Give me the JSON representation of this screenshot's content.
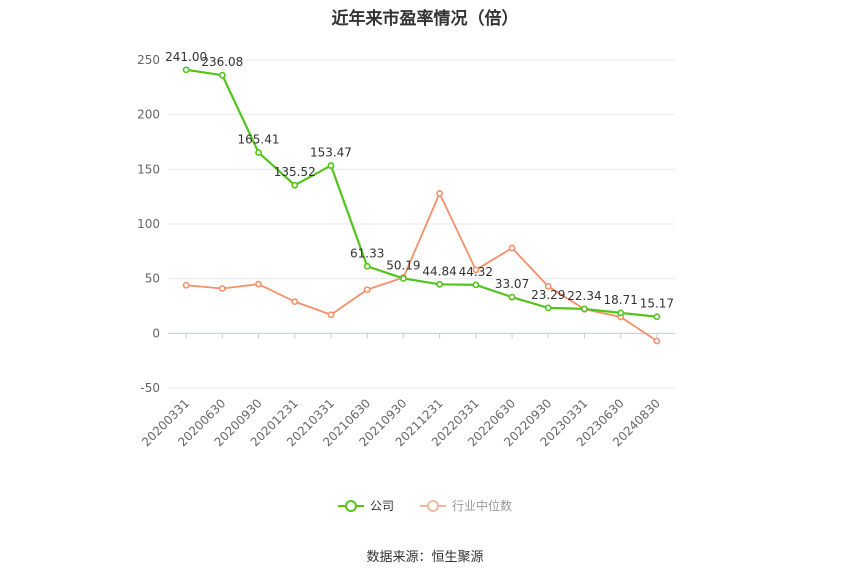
{
  "chart_data": {
    "type": "line",
    "title": "近年来市盈率情况（倍）",
    "categories": [
      "20200331",
      "20200630",
      "20200930",
      "20201231",
      "20210331",
      "20210630",
      "20210930",
      "20211231",
      "20220331",
      "20220630",
      "20220930",
      "20230331",
      "20230630",
      "20240830"
    ],
    "series": [
      {
        "name": "公司",
        "color": "#52c41a",
        "values": [
          241.0,
          236.08,
          165.41,
          135.52,
          153.47,
          61.33,
          50.19,
          44.84,
          44.32,
          33.07,
          23.29,
          22.34,
          18.71,
          15.17
        ],
        "labels": [
          "241.00",
          "236.08",
          "165.41",
          "135.52",
          "153.47",
          "61.33",
          "50.19",
          "44.84",
          "44.32",
          "33.07",
          "23.29",
          "22.34",
          "18.71",
          "15.17"
        ]
      },
      {
        "name": "行业中位数",
        "color": "#f4906a",
        "values": [
          44,
          41,
          45,
          29,
          17,
          40,
          51,
          128,
          58,
          78,
          43,
          22,
          15,
          -7
        ]
      }
    ],
    "yticks": [
      250,
      200,
      150,
      100,
      50,
      0,
      -50
    ],
    "ylim": [
      -50,
      250
    ],
    "grid": true,
    "legend_position": "bottom"
  },
  "source": "数据来源：恒生聚源"
}
